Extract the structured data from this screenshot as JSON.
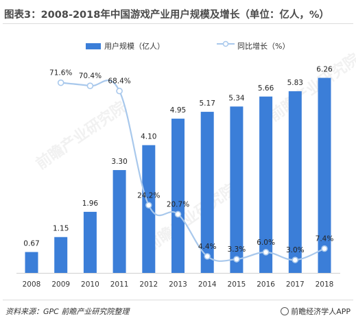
{
  "title": "图表3：2008-2018年中国游戏产业用户规模及增长（单位：亿人，%）",
  "legend": {
    "bar": "用户规模（亿人）",
    "line": "同比增长（%）"
  },
  "source": "资料来源：GPC  前瞻产业研究院整理",
  "brand": "前瞻经济学人APP",
  "watermark": "前瞻产业研究院",
  "colors": {
    "bar": "#3b7ed8",
    "line": "#a8c8ec",
    "marker_fill": "#ffffff"
  },
  "chart_data": {
    "type": "bar",
    "categories": [
      "2008",
      "2009",
      "2010",
      "2011",
      "2012",
      "2013",
      "2014",
      "2015",
      "2016",
      "2017",
      "2018"
    ],
    "series": [
      {
        "name": "用户规模（亿人）",
        "type": "bar",
        "values": [
          0.67,
          1.15,
          1.96,
          3.3,
          4.1,
          4.95,
          5.17,
          5.34,
          5.66,
          5.83,
          6.26
        ],
        "labels": [
          "0.67",
          "1.15",
          "1.96",
          "3.30",
          "4.10",
          "4.95",
          "5.17",
          "5.34",
          "5.66",
          "5.83",
          "6.26"
        ]
      },
      {
        "name": "同比增长（%）",
        "type": "line",
        "values": [
          null,
          71.6,
          70.4,
          68.4,
          24.2,
          20.7,
          4.4,
          3.3,
          6.0,
          3.0,
          7.4
        ],
        "labels": [
          null,
          "71.6%",
          "70.4%",
          "68.4%",
          "24.2%",
          "20.7%",
          "4.4%",
          "3.3%",
          "6.0%",
          "3.0%",
          "7.4%"
        ]
      }
    ],
    "bar_ylim": [
      0,
      6.8
    ],
    "line_ylim": [
      -2,
      80
    ],
    "grid": false,
    "legend_position": "top"
  }
}
